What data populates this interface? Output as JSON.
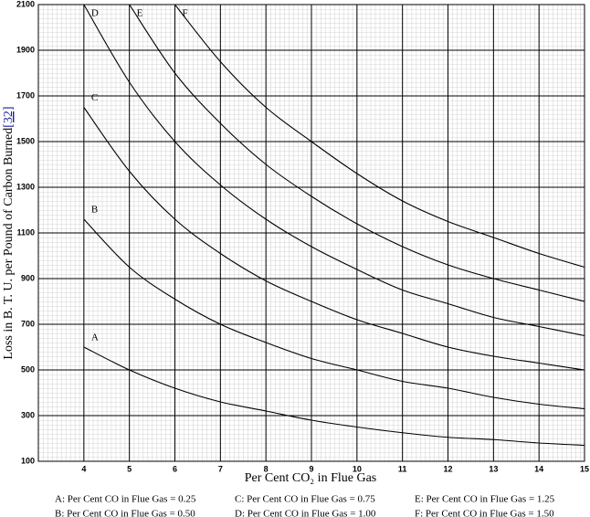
{
  "chart_data": {
    "type": "line",
    "xlabel": "Per Cent CO₂ in Flue Gas",
    "ylabel": "Loss in B. T. U. per Pound of Carbon Burned",
    "ylabel_ref": "[32]",
    "x": [
      4,
      5,
      6,
      7,
      8,
      9,
      10,
      11,
      12,
      13,
      14,
      15
    ],
    "series": [
      {
        "name": "A:  Per Cent CO in Flue Gas = 0.25",
        "label": "A",
        "color": "#000000",
        "values": [
          600,
          500,
          420,
          360,
          320,
          280,
          250,
          225,
          205,
          195,
          180,
          170
        ]
      },
      {
        "name": "B:  Per Cent CO in Flue Gas = 0.50",
        "label": "B",
        "color": "#000000",
        "values": [
          1160,
          950,
          810,
          700,
          620,
          550,
          500,
          450,
          420,
          380,
          350,
          330
        ]
      },
      {
        "name": "C:  Per Cent CO in Flue Gas = 0.75",
        "label": "C",
        "color": "#000000",
        "values": [
          1650,
          1370,
          1160,
          1010,
          890,
          800,
          720,
          660,
          600,
          560,
          530,
          500
        ]
      },
      {
        "name": "D:  Per Cent CO in Flue Gas = 1.00",
        "label": "D",
        "color": "#000000",
        "values": [
          2100,
          1760,
          1500,
          1310,
          1160,
          1040,
          940,
          850,
          790,
          730,
          690,
          650
        ]
      },
      {
        "name": "E:  Per Cent CO in Flue Gas = 1.25",
        "label": "E",
        "color": "#000000",
        "values": [
          null,
          2100,
          1800,
          1580,
          1400,
          1260,
          1140,
          1040,
          960,
          900,
          850,
          800
        ]
      },
      {
        "name": "F:  Per Cent CO in Flue Gas = 1.50",
        "label": "F",
        "color": "#000000",
        "values": [
          null,
          null,
          2100,
          1850,
          1650,
          1500,
          1360,
          1240,
          1150,
          1080,
          1010,
          950
        ]
      }
    ],
    "xlim": [
      3,
      15
    ],
    "ylim": [
      100,
      2100
    ],
    "xticks": [
      4,
      5,
      6,
      7,
      8,
      9,
      10,
      11,
      12,
      13,
      14,
      15
    ],
    "yticks": [
      100,
      300,
      500,
      700,
      900,
      1100,
      1300,
      1500,
      1700,
      1900,
      2100
    ],
    "grid": true
  }
}
